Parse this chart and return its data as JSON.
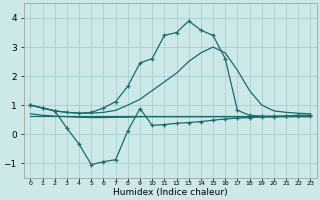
{
  "xlabel": "Humidex (Indice chaleur)",
  "bg_color": "#cce8e8",
  "grid_color": "#aacfcf",
  "line_color": "#1a6b6b",
  "x": [
    0,
    1,
    2,
    3,
    4,
    5,
    6,
    7,
    8,
    9,
    10,
    11,
    12,
    13,
    14,
    15,
    16,
    17,
    18,
    19,
    20,
    21,
    22,
    23
  ],
  "line_upper": [
    1.0,
    0.9,
    0.8,
    0.75,
    0.72,
    0.72,
    0.75,
    0.82,
    1.0,
    1.2,
    1.5,
    1.8,
    2.1,
    2.5,
    2.8,
    3.0,
    2.8,
    2.2,
    1.5,
    1.0,
    0.8,
    0.75,
    0.72,
    0.7
  ],
  "line_mid1": [
    0.7,
    0.65,
    0.62,
    0.6,
    0.58,
    0.57,
    0.57,
    0.58,
    0.58,
    0.6,
    0.6,
    0.6,
    0.6,
    0.6,
    0.6,
    0.6,
    0.6,
    0.6,
    0.6,
    0.6,
    0.6,
    0.6,
    0.6,
    0.6
  ],
  "line_mid2": [
    0.62,
    0.62,
    0.62,
    0.62,
    0.62,
    0.62,
    0.62,
    0.62,
    0.62,
    0.62,
    0.62,
    0.62,
    0.62,
    0.62,
    0.62,
    0.62,
    0.62,
    0.62,
    0.62,
    0.62,
    0.62,
    0.62,
    0.62,
    0.62
  ],
  "line_dip": [
    1.0,
    0.9,
    0.8,
    0.2,
    -0.35,
    -1.05,
    -0.95,
    -0.88,
    0.12,
    0.88,
    0.3,
    0.33,
    0.37,
    0.4,
    0.43,
    0.48,
    0.52,
    0.55,
    0.57,
    0.59,
    0.6,
    0.62,
    0.63,
    0.63
  ],
  "line_main": [
    1.0,
    0.9,
    0.8,
    0.75,
    0.72,
    0.75,
    0.9,
    1.12,
    1.65,
    2.45,
    2.6,
    3.4,
    3.5,
    3.9,
    3.58,
    3.4,
    2.6,
    0.82,
    0.65,
    0.62,
    0.62,
    0.62,
    0.65,
    0.65
  ],
  "ylim": [
    -1.5,
    4.5
  ],
  "yticks": [
    -1,
    0,
    1,
    2,
    3,
    4
  ],
  "xlim": [
    -0.5,
    23.5
  ],
  "xtick_labels": [
    "0",
    "1",
    "2",
    "3",
    "4",
    "5",
    "6",
    "7",
    "8",
    "9",
    "10",
    "11",
    "12",
    "13",
    "14",
    "15",
    "16",
    "17",
    "18",
    "19",
    "20",
    "21",
    "22",
    "23"
  ]
}
